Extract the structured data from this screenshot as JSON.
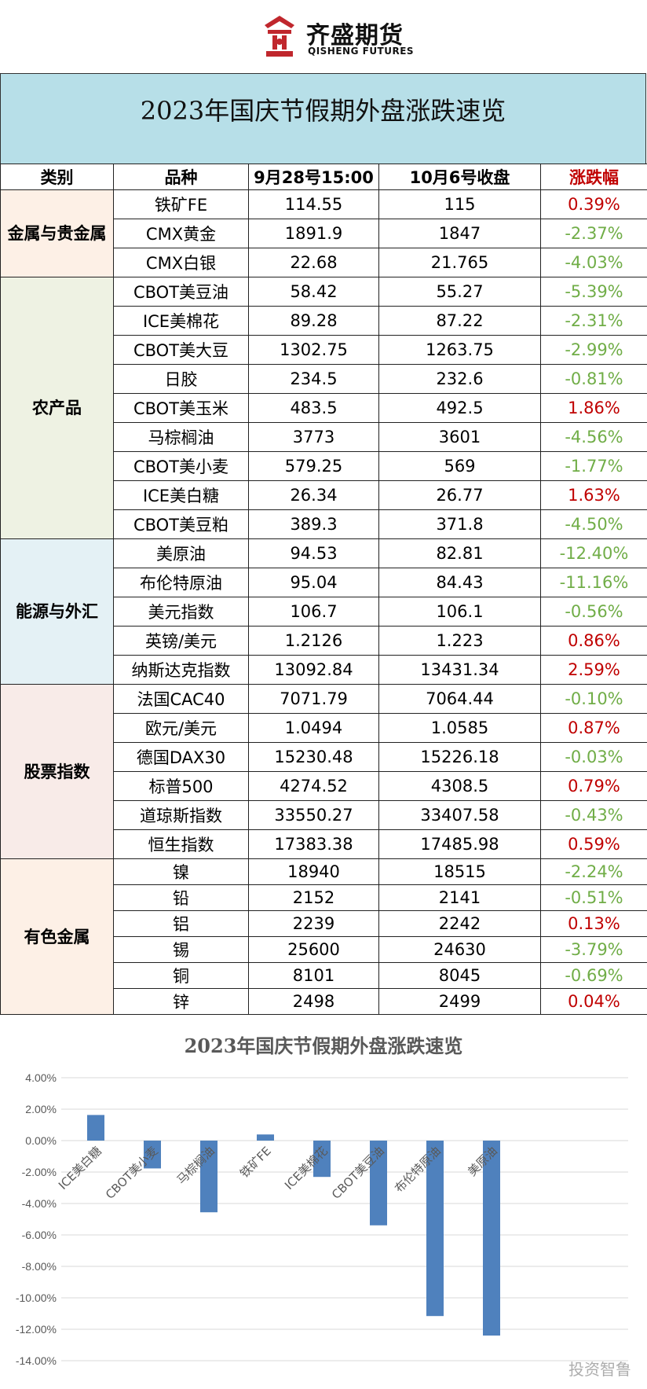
{
  "brand": {
    "name_cn": "齐盛期货",
    "name_en": "QISHENG FUTURES",
    "color": "#c0272d"
  },
  "title": "2023年国庆节假期外盘涨跌速览",
  "table": {
    "headers": [
      "类别",
      "品种",
      "9月28号15:00",
      "10月6号收盘",
      "涨跌幅"
    ],
    "groups": [
      {
        "category": "金属与贵金属",
        "bg": "#fdf0e6",
        "rows": [
          {
            "name": "铁矿FE",
            "before": "114.55",
            "after": "115",
            "change": "0.39%"
          },
          {
            "name": "CMX黄金",
            "before": "1891.9",
            "after": "1847",
            "change": "-2.37%"
          },
          {
            "name": "CMX白银",
            "before": "22.68",
            "after": "21.765",
            "change": "-4.03%"
          }
        ]
      },
      {
        "category": "农产品",
        "bg": "#eef2e3",
        "rows": [
          {
            "name": "CBOT美豆油",
            "before": "58.42",
            "after": "55.27",
            "change": "-5.39%"
          },
          {
            "name": "ICE美棉花",
            "before": "89.28",
            "after": "87.22",
            "change": "-2.31%"
          },
          {
            "name": "CBOT美大豆",
            "before": "1302.75",
            "after": "1263.75",
            "change": "-2.99%"
          },
          {
            "name": "日胶",
            "before": "234.5",
            "after": "232.6",
            "change": "-0.81%"
          },
          {
            "name": "CBOT美玉米",
            "before": "483.5",
            "after": "492.5",
            "change": "1.86%"
          },
          {
            "name": "马棕榈油",
            "before": "3773",
            "after": "3601",
            "change": "-4.56%"
          },
          {
            "name": "CBOT美小麦",
            "before": "579.25",
            "after": "569",
            "change": "-1.77%"
          },
          {
            "name": "ICE美白糖",
            "before": "26.34",
            "after": "26.77",
            "change": "1.63%"
          },
          {
            "name": "CBOT美豆粕",
            "before": "389.3",
            "after": "371.8",
            "change": "-4.50%"
          }
        ]
      },
      {
        "category": "能源与外汇",
        "bg": "#e4f1f5",
        "rows": [
          {
            "name": "美原油",
            "before": "94.53",
            "after": "82.81",
            "change": "-12.40%"
          },
          {
            "name": "布伦特原油",
            "before": "95.04",
            "after": "84.43",
            "change": "-11.16%"
          },
          {
            "name": "美元指数",
            "before": "106.7",
            "after": "106.1",
            "change": "-0.56%"
          },
          {
            "name": "英镑/美元",
            "before": "1.2126",
            "after": "1.223",
            "change": "0.86%"
          },
          {
            "name": "纳斯达克指数",
            "before": "13092.84",
            "after": "13431.34",
            "change": "2.59%"
          }
        ]
      },
      {
        "category": "股票指数",
        "bg": "#f8ebe8",
        "rows": [
          {
            "name": "法国CAC40",
            "before": "7071.79",
            "after": "7064.44",
            "change": "-0.10%"
          },
          {
            "name": "欧元/美元",
            "before": "1.0494",
            "after": "1.0585",
            "change": "0.87%"
          },
          {
            "name": "德国DAX30",
            "before": "15230.48",
            "after": "15226.18",
            "change": "-0.03%"
          },
          {
            "name": "标普500",
            "before": "4274.52",
            "after": "4308.5",
            "change": "0.79%"
          },
          {
            "name": "道琼斯指数",
            "before": "33550.27",
            "after": "33407.58",
            "change": "-0.43%"
          },
          {
            "name": "恒生指数",
            "before": "17383.38",
            "after": "17485.98",
            "change": "0.59%"
          }
        ]
      },
      {
        "category": "有色金属",
        "bg": "#fdf0e6",
        "rows": [
          {
            "name": "镍",
            "before": "18940",
            "after": "18515",
            "change": "-2.24%"
          },
          {
            "name": "铅",
            "before": "2152",
            "after": "2141",
            "change": "-0.51%"
          },
          {
            "name": "铝",
            "before": "2239",
            "after": "2242",
            "change": "0.13%"
          },
          {
            "name": "锡",
            "before": "25600",
            "after": "24630",
            "change": "-3.79%"
          },
          {
            "name": "铜",
            "before": "8101",
            "after": "8045",
            "change": "-0.69%"
          },
          {
            "name": "锌",
            "before": "2498",
            "after": "2499",
            "change": "0.04%"
          }
        ]
      }
    ],
    "colors": {
      "up": "#c00000",
      "down": "#70ad47"
    }
  },
  "chart_data": {
    "type": "bar",
    "title": "2023年国庆节假期外盘涨跌速览",
    "categories": [
      "ICE美白糖",
      "CBOT美小麦",
      "马棕榈油",
      "铁矿FE",
      "ICE美棉花",
      "CBOT美豆油",
      "布伦特原油",
      "美原油"
    ],
    "values": [
      1.63,
      -1.77,
      -4.56,
      0.39,
      -2.31,
      -5.39,
      -11.16,
      -12.4
    ],
    "unit": "%",
    "ylim": [
      -14,
      4
    ],
    "yticks": [
      "4.00%",
      "2.00%",
      "0.00%",
      "-2.00%",
      "-4.00%",
      "-6.00%",
      "-8.00%",
      "-10.00%",
      "-12.00%",
      "-14.00%"
    ],
    "grid": true,
    "bar_color": "#4f81bd"
  },
  "watermark": "投资智鲁"
}
